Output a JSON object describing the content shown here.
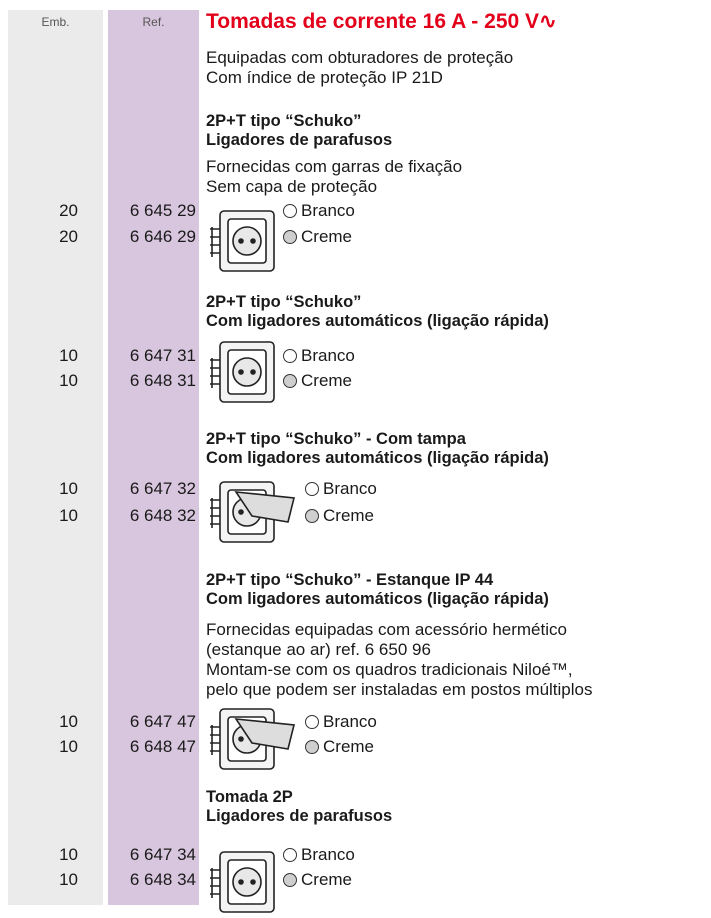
{
  "header": {
    "emb": "Emb.",
    "ref": "Ref.",
    "title": "Tomadas de corrente 16 A - 250 V∿"
  },
  "intro": [
    "Equipadas com obturadores de proteção",
    "Com índice de proteção IP 21D"
  ],
  "sections": [
    {
      "heading": [
        "2P+T tipo “Schuko”",
        "Ligadores de parafusos"
      ],
      "notes": [
        "Fornecidas com garras de fixação",
        "Sem capa de proteção"
      ],
      "items": [
        {
          "emb": "20",
          "ref": "6 645 29",
          "color": "Branco"
        },
        {
          "emb": "20",
          "ref": "6 646 29",
          "color": "Creme"
        }
      ]
    },
    {
      "heading": [
        "2P+T tipo “Schuko”",
        "Com ligadores automáticos (ligação rápida)"
      ],
      "notes": [],
      "items": [
        {
          "emb": "10",
          "ref": "6 647 31",
          "color": "Branco"
        },
        {
          "emb": "10",
          "ref": "6 648 31",
          "color": "Creme"
        }
      ]
    },
    {
      "heading": [
        "2P+T tipo “Schuko” - Com tampa",
        "Com ligadores automáticos (ligação rápida)"
      ],
      "notes": [],
      "items": [
        {
          "emb": "10",
          "ref": "6 647 32",
          "color": "Branco"
        },
        {
          "emb": "10",
          "ref": "6 648 32",
          "color": "Creme"
        }
      ]
    },
    {
      "heading": [
        "2P+T tipo “Schuko” - Estanque IP 44",
        "Com ligadores automáticos (ligação rápida)"
      ],
      "notes": [
        "Fornecidas equipadas com acessório hermético",
        "(estanque ao ar) ref. 6 650 96",
        "Montam-se com os quadros tradicionais Niloé™,",
        "pelo que podem ser instaladas em postos múltiplos"
      ],
      "items": [
        {
          "emb": "10",
          "ref": "6 647 47",
          "color": "Branco"
        },
        {
          "emb": "10",
          "ref": "6 648 47",
          "color": "Creme"
        }
      ]
    },
    {
      "heading": [
        "Tomada 2P",
        "Ligadores de parafusos"
      ],
      "notes": [],
      "items": [
        {
          "emb": "10",
          "ref": "6 647 34",
          "color": "Branco"
        },
        {
          "emb": "10",
          "ref": "6 648 34",
          "color": "Creme"
        }
      ]
    }
  ]
}
